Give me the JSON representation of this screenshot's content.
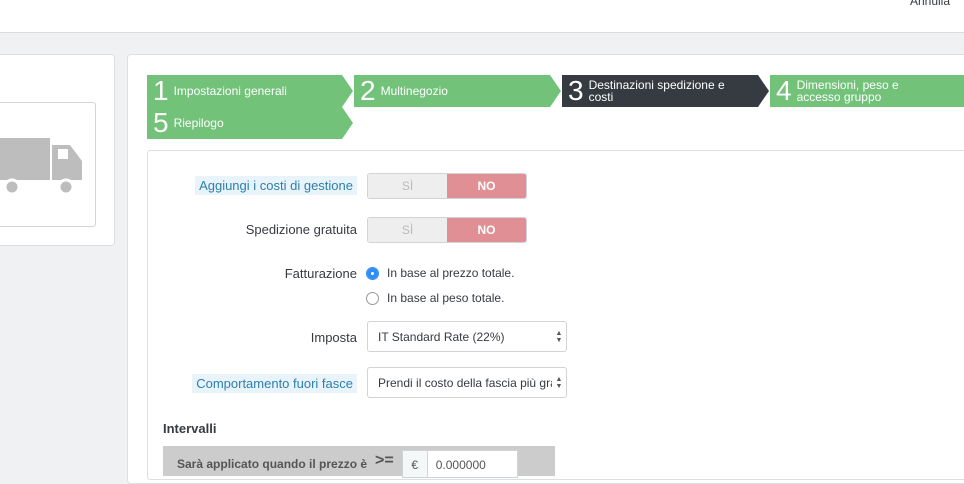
{
  "header": {
    "cancel_label": "Annulla"
  },
  "steps": [
    {
      "num": "1",
      "label": "Impostazioni generali",
      "state": "done"
    },
    {
      "num": "2",
      "label": "Multinegozio",
      "state": "done"
    },
    {
      "num": "3",
      "label": "Destinazioni spedizione e costi",
      "state": "active"
    },
    {
      "num": "4",
      "label": "Dimensioni, peso e accesso gruppo",
      "state": "done"
    },
    {
      "num": "5",
      "label": "Riepilogo",
      "state": "done"
    }
  ],
  "form": {
    "handling": {
      "label": "Aggiungi i costi di gestione",
      "yes": "SÌ",
      "no": "NO",
      "value": "NO"
    },
    "free": {
      "label": "Spedizione gratuita",
      "yes": "SÌ",
      "no": "NO",
      "value": "NO"
    },
    "billing": {
      "label": "Fatturazione",
      "options": [
        "In base al prezzo totale.",
        "In base al peso totale."
      ],
      "selected": 0
    },
    "tax": {
      "label": "Imposta",
      "value": "IT Standard Rate (22%)"
    },
    "outofrange": {
      "label": "Comportamento fuori fasce",
      "value": "Prendi il costo della fascia più grande"
    },
    "ranges": {
      "title": "Intervalli",
      "row_label": "Sarà applicato quando il prezzo è",
      "operator": ">=",
      "currency": "€",
      "value": "0.000000"
    }
  },
  "colors": {
    "step_done": "#72c279",
    "step_active": "#363a41",
    "no_active": "#e08f95",
    "radio_on": "#2f8df5"
  },
  "icons": {
    "carrier_logo": "truck-icon"
  }
}
